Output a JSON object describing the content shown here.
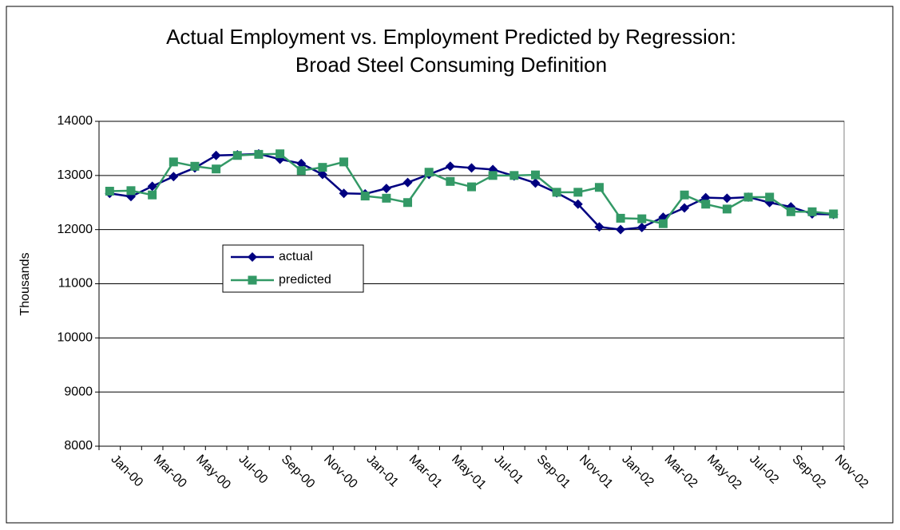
{
  "chart_data": {
    "type": "line",
    "title": [
      "Actual Employment vs. Employment Predicted by Regression:",
      "Broad Steel Consuming Definition"
    ],
    "y_label": "Thousands",
    "categories": [
      "Jan-00",
      null,
      "Mar-00",
      null,
      "May-00",
      null,
      "Jul-00",
      null,
      "Sep-00",
      null,
      "Nov-00",
      null,
      "Jan-01",
      null,
      "Mar-01",
      null,
      "May-01",
      null,
      "Jul-01",
      null,
      "Sep-01",
      null,
      "Nov-01",
      null,
      "Jan-02",
      null,
      "Mar-02",
      null,
      "May-02",
      null,
      "Jul-02",
      null,
      "Sep-02",
      null,
      "Nov-02"
    ],
    "series": [
      {
        "name": "actual",
        "color": "#000080",
        "marker": "diamond",
        "values": [
          12670,
          12610,
          12800,
          12980,
          13140,
          13370,
          13380,
          13400,
          13300,
          13220,
          13020,
          12670,
          12660,
          12760,
          12870,
          13020,
          13170,
          13140,
          13110,
          12990,
          12860,
          12680,
          12470,
          12050,
          12000,
          12040,
          12230,
          12400,
          12590,
          12580,
          12600,
          12500,
          12420,
          12290,
          12280
        ]
      },
      {
        "name": "predicted",
        "color": "#339966",
        "marker": "square",
        "values": [
          12710,
          12720,
          12640,
          13250,
          13170,
          13120,
          13370,
          13390,
          13400,
          13090,
          13150,
          13250,
          12620,
          12580,
          12500,
          13060,
          12890,
          12790,
          13000,
          13000,
          13010,
          12690,
          12690,
          12780,
          12210,
          12200,
          12110,
          12640,
          12470,
          12380,
          12600,
          12600,
          12330,
          12330,
          12290
        ]
      }
    ],
    "ylim": [
      8000,
      14000
    ],
    "yticks": [
      8000,
      9000,
      10000,
      11000,
      12000,
      13000,
      14000
    ],
    "grid": true
  }
}
